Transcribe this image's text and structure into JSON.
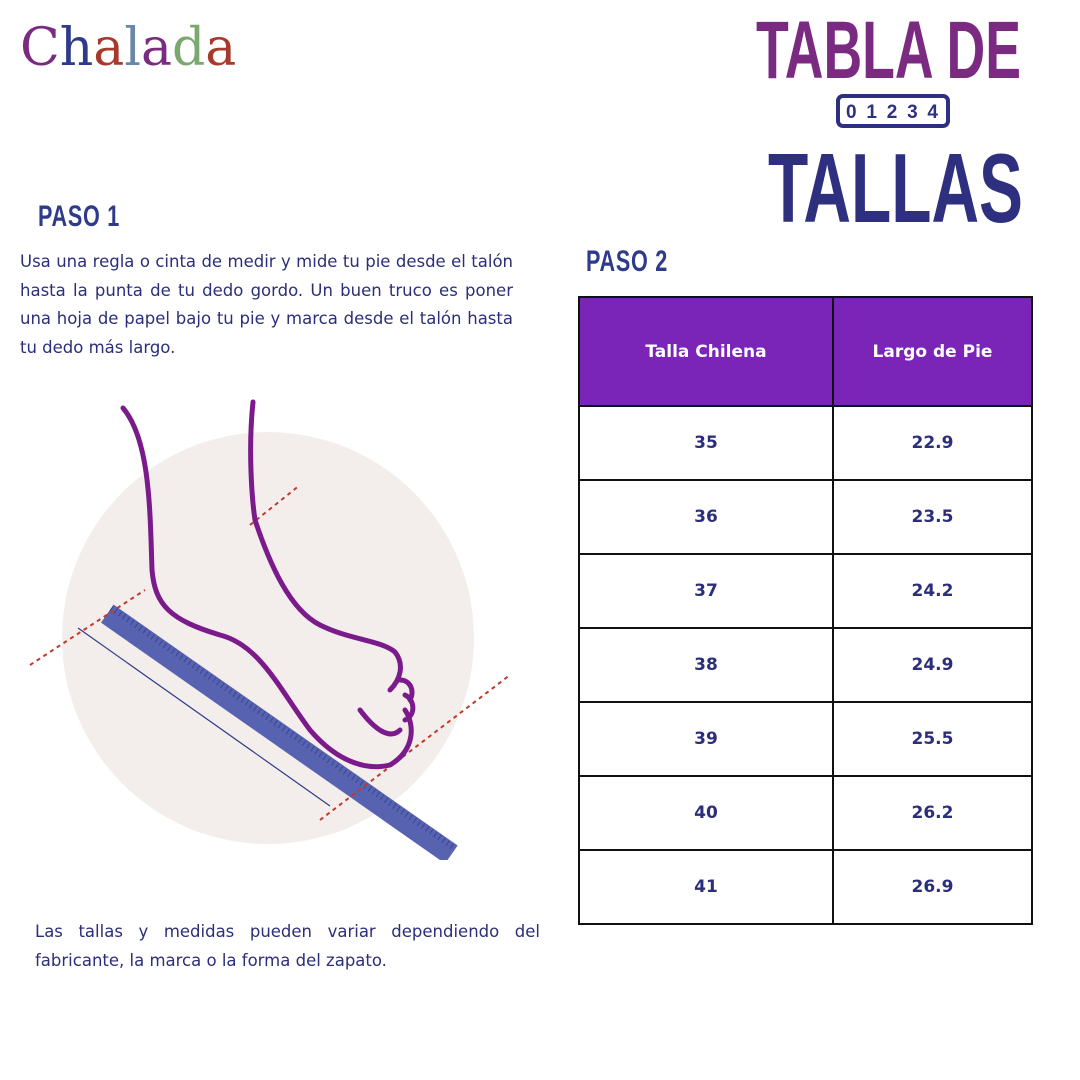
{
  "brand": {
    "logo_text": "Chalada",
    "letter_colors": [
      "#7b2a82",
      "#2e3a8a",
      "#a63a2c",
      "#6a86a8",
      "#7b2a82",
      "#7aa86e",
      "#a63a2c"
    ]
  },
  "title": {
    "line1": "TABLA DE",
    "line2": "TALLAS",
    "ruler_numbers": "0 1 2 3 4",
    "color_line1": "#7b2a82",
    "color_line2": "#2e2f7f"
  },
  "step1": {
    "heading": "PASO 1",
    "text": "Usa una regla o cinta de medir y mide tu pie desde el talón hasta la punta de tu dedo gordo. Un buen truco es poner una hoja de papel bajo tu pie y marca desde el talón hasta tu dedo más largo."
  },
  "step2": {
    "heading": "PASO 2"
  },
  "table": {
    "headers": [
      "Talla Chilena",
      "Largo de Pie"
    ],
    "header_color": "#7a24b8",
    "rows": [
      [
        "35",
        "22.9"
      ],
      [
        "36",
        "23.5"
      ],
      [
        "37",
        "24.2"
      ],
      [
        "38",
        "24.9"
      ],
      [
        "39",
        "25.5"
      ],
      [
        "40",
        "26.2"
      ],
      [
        "41",
        "26.9"
      ]
    ]
  },
  "note": "Las tallas y medidas pueden variar dependiendo del fabricante, la marca o la forma del zapato."
}
